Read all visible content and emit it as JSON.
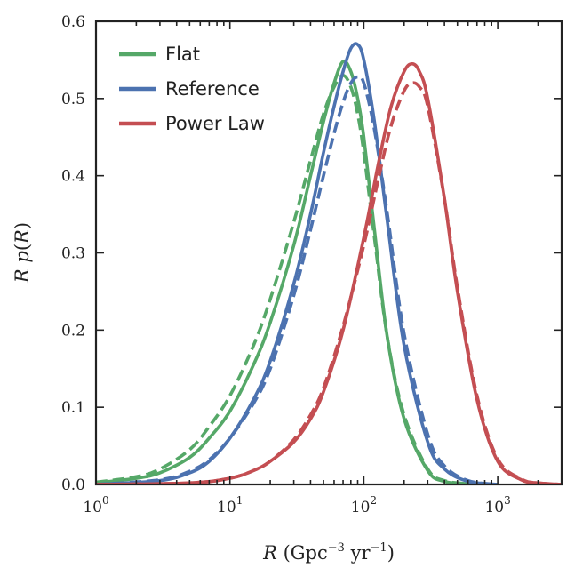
{
  "chart_data": {
    "type": "line",
    "title": "",
    "xlabel": "R (Gpc⁻³ yr⁻¹)",
    "ylabel": "R p(R)",
    "xscale": "log",
    "xlim": [
      1,
      3000
    ],
    "ylim": [
      0,
      0.6
    ],
    "legend_position": "top-left",
    "grid": false,
    "x_ticks": [
      {
        "value": 1,
        "base": "10",
        "exp": "0"
      },
      {
        "value": 10,
        "base": "10",
        "exp": "1"
      },
      {
        "value": 100,
        "base": "10",
        "exp": "2"
      },
      {
        "value": 1000,
        "base": "10",
        "exp": "3"
      }
    ],
    "y_ticks": [
      "0.0",
      "0.1",
      "0.2",
      "0.3",
      "0.4",
      "0.5",
      "0.6"
    ],
    "line_styles": [
      "solid",
      "dashed"
    ],
    "series": [
      {
        "name": "Flat",
        "color": "#55a868",
        "solid": {
          "x": [
            1,
            2,
            3,
            5,
            7,
            10,
            15,
            20,
            30,
            40,
            50,
            60,
            70,
            80,
            90,
            100,
            120,
            150,
            200,
            300,
            400,
            600,
            1000
          ],
          "y": [
            0.002,
            0.008,
            0.015,
            0.035,
            0.06,
            0.095,
            0.155,
            0.21,
            0.31,
            0.4,
            0.47,
            0.52,
            0.548,
            0.535,
            0.5,
            0.45,
            0.33,
            0.19,
            0.085,
            0.018,
            0.004,
            0.001,
            0.0
          ]
        },
        "dashed": {
          "x": [
            1,
            2,
            3,
            5,
            7,
            10,
            15,
            20,
            30,
            40,
            50,
            60,
            70,
            80,
            90,
            100,
            120,
            150,
            200,
            300,
            400,
            600,
            1000
          ],
          "y": [
            0.003,
            0.01,
            0.02,
            0.045,
            0.075,
            0.115,
            0.18,
            0.24,
            0.34,
            0.42,
            0.48,
            0.515,
            0.53,
            0.515,
            0.48,
            0.43,
            0.32,
            0.19,
            0.09,
            0.02,
            0.005,
            0.001,
            0.0
          ]
        }
      },
      {
        "name": "Reference",
        "color": "#4c72b0",
        "solid": {
          "x": [
            1,
            3,
            5,
            7,
            10,
            15,
            20,
            30,
            40,
            50,
            60,
            70,
            80,
            90,
            100,
            120,
            150,
            200,
            300,
            400,
            600,
            1000
          ],
          "y": [
            0.0,
            0.005,
            0.015,
            0.03,
            0.06,
            0.11,
            0.16,
            0.26,
            0.35,
            0.43,
            0.49,
            0.535,
            0.565,
            0.57,
            0.55,
            0.47,
            0.34,
            0.18,
            0.055,
            0.02,
            0.004,
            0.0
          ]
        },
        "dashed": {
          "x": [
            1,
            3,
            5,
            7,
            10,
            15,
            20,
            30,
            40,
            50,
            60,
            70,
            80,
            90,
            100,
            120,
            150,
            200,
            300,
            400,
            600,
            1000
          ],
          "y": [
            0.0,
            0.006,
            0.017,
            0.032,
            0.06,
            0.105,
            0.15,
            0.245,
            0.33,
            0.4,
            0.455,
            0.495,
            0.52,
            0.528,
            0.52,
            0.46,
            0.35,
            0.195,
            0.065,
            0.024,
            0.005,
            0.0
          ]
        }
      },
      {
        "name": "Power Law",
        "color": "#c44e52",
        "solid": {
          "x": [
            1,
            5,
            10,
            15,
            20,
            30,
            40,
            50,
            70,
            100,
            130,
            160,
            200,
            230,
            260,
            300,
            400,
            500,
            700,
            1000,
            1500,
            2000,
            3000
          ],
          "y": [
            0.0,
            0.002,
            0.008,
            0.018,
            0.03,
            0.055,
            0.085,
            0.12,
            0.2,
            0.32,
            0.42,
            0.49,
            0.535,
            0.545,
            0.535,
            0.5,
            0.37,
            0.25,
            0.11,
            0.03,
            0.006,
            0.002,
            0.0
          ]
        },
        "dashed": {
          "x": [
            1,
            5,
            10,
            15,
            20,
            30,
            40,
            50,
            70,
            100,
            130,
            160,
            200,
            230,
            260,
            300,
            400,
            500,
            700,
            1000,
            1500,
            2000,
            3000
          ],
          "y": [
            0.0,
            0.002,
            0.008,
            0.018,
            0.03,
            0.058,
            0.09,
            0.125,
            0.205,
            0.31,
            0.4,
            0.465,
            0.51,
            0.52,
            0.515,
            0.49,
            0.37,
            0.255,
            0.115,
            0.033,
            0.007,
            0.002,
            0.0
          ]
        }
      }
    ]
  }
}
